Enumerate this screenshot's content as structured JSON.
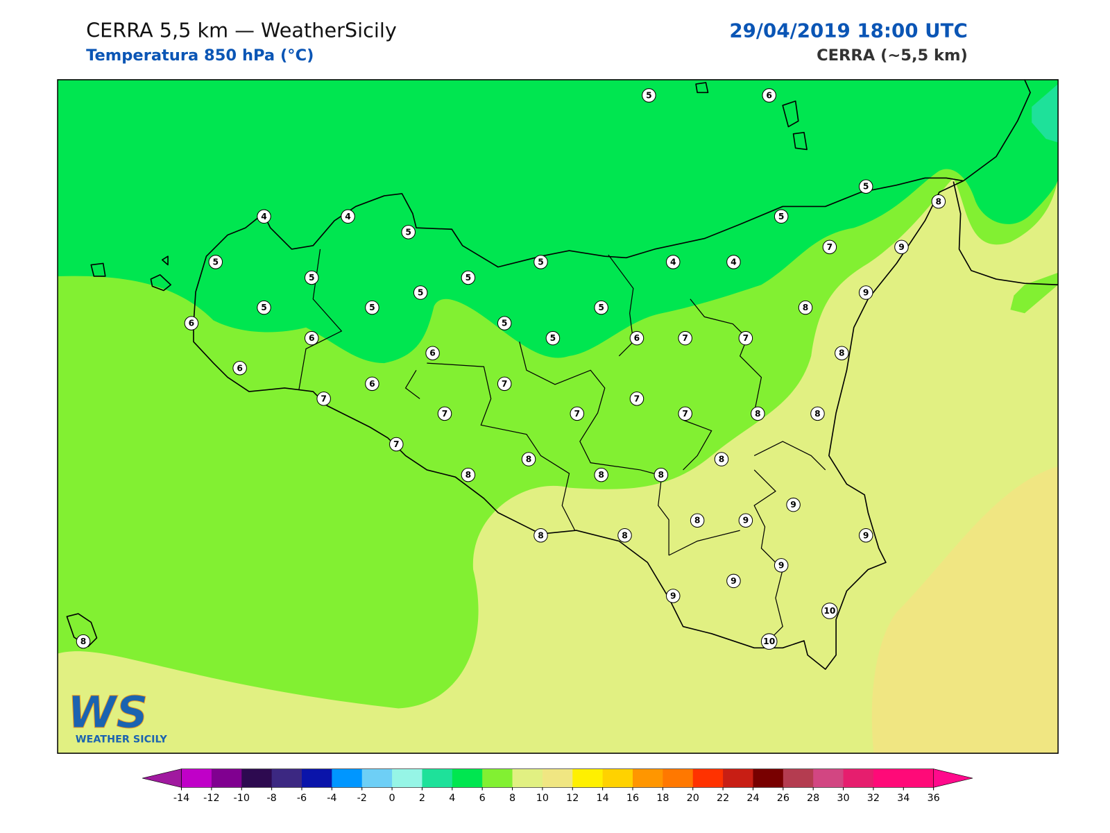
{
  "header": {
    "title": "CERRA 5,5 km — WeatherSicily",
    "subtitle": "Temperatura 850 hPa (°C)",
    "datetime": "29/04/2019 18:00 UTC",
    "model": "CERRA (~5,5 km)"
  },
  "map": {
    "stations": [
      5,
      6,
      5,
      8,
      4,
      4,
      5,
      5,
      7,
      9,
      5,
      5,
      5,
      5,
      4,
      4,
      5,
      9,
      5,
      5,
      5,
      8,
      6,
      5,
      6,
      5,
      6,
      7,
      7,
      6,
      8,
      6,
      6,
      7,
      7,
      7,
      7,
      7,
      7,
      8,
      8,
      7,
      8,
      8,
      8,
      8,
      8,
      9,
      8,
      9,
      8,
      8,
      9,
      9,
      9,
      9,
      10,
      10,
      8
    ]
  },
  "colorbar": {
    "ticks": [
      -14,
      -12,
      -10,
      -8,
      -6,
      -4,
      -2,
      0,
      2,
      4,
      6,
      8,
      10,
      12,
      14,
      16,
      18,
      20,
      22,
      24,
      26,
      28,
      30,
      32,
      34,
      36
    ],
    "colors": [
      "#c000c8",
      "#800090",
      "#2d0a50",
      "#3c2882",
      "#0a14aa",
      "#0096ff",
      "#6ecff6",
      "#96f5e6",
      "#1ee19a",
      "#00e650",
      "#82f032",
      "#e1f082",
      "#f0e682",
      "#fff000",
      "#ffd200",
      "#ff9600",
      "#ff7800",
      "#ff3200",
      "#c81e14",
      "#780000",
      "#b43c50",
      "#d24682",
      "#e61e6e",
      "#ff0a78",
      "#ff0a78"
    ],
    "under_color": "#a0199f",
    "over_color": "#ff0a8c"
  },
  "logo": {
    "mark": "WS",
    "name": "WEATHER SICILY"
  }
}
